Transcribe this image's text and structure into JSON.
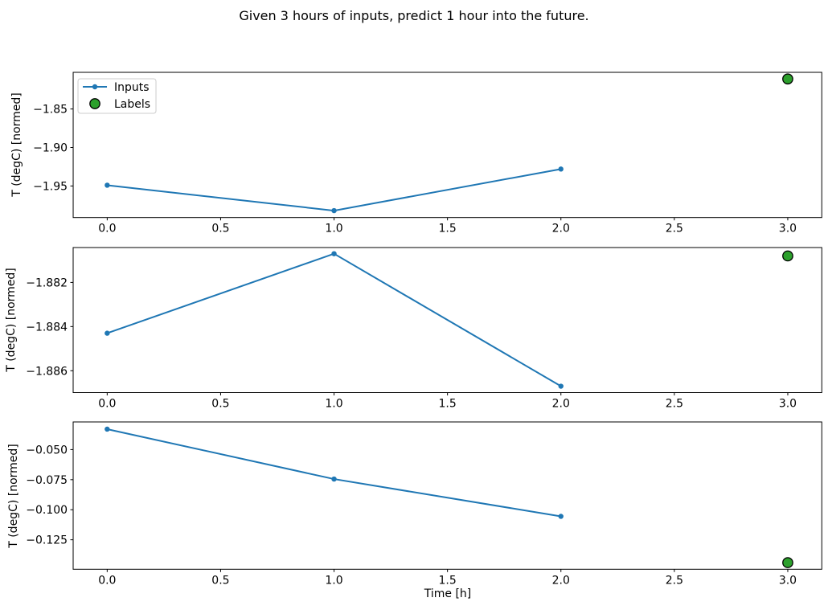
{
  "title": "Given 3 hours of inputs, predict 1 hour into the future.",
  "xlabel": "Time [h]",
  "colors": {
    "inputs_line": "#1f77b4",
    "labels_fill": "#2ca02c",
    "labels_edge": "#000000",
    "axis": "#000000",
    "legend_border": "#cccccc",
    "background": "#ffffff"
  },
  "legend": {
    "items": [
      {
        "label": "Inputs",
        "sample": "line-with-dot-marker"
      },
      {
        "label": "Labels",
        "sample": "filled-circle"
      }
    ]
  },
  "chart_data": [
    {
      "type": "line",
      "ylabel": "T (degC) [normed]",
      "xlim": [
        -0.15,
        3.15
      ],
      "ylim": [
        -1.991,
        -1.8024
      ],
      "xticks": {
        "values": [
          0,
          0.5,
          1,
          1.5,
          2,
          2.5,
          3
        ],
        "labels": [
          "0.0",
          "0.5",
          "1.0",
          "1.5",
          "2.0",
          "2.5",
          "3.0"
        ]
      },
      "yticks": {
        "values": [
          -1.85,
          -1.9,
          -1.95
        ],
        "labels": [
          "−1.85",
          "−1.90",
          "−1.95"
        ]
      },
      "series": [
        {
          "name": "Inputs",
          "x": [
            0,
            1,
            2
          ],
          "y": [
            -1.949,
            -1.982,
            -1.928
          ]
        },
        {
          "name": "Labels",
          "x": [
            3
          ],
          "y": [
            -1.811
          ]
        }
      ],
      "show_legend": true,
      "show_xlabel": false
    },
    {
      "type": "line",
      "ylabel": "T (degC) [normed]",
      "xlim": [
        -0.15,
        3.15
      ],
      "ylim": [
        -1.88699,
        -1.88042
      ],
      "xticks": {
        "values": [
          0,
          0.5,
          1,
          1.5,
          2,
          2.5,
          3
        ],
        "labels": [
          "0.0",
          "0.5",
          "1.0",
          "1.5",
          "2.0",
          "2.5",
          "3.0"
        ]
      },
      "yticks": {
        "values": [
          -1.882,
          -1.884,
          -1.886
        ],
        "labels": [
          "−1.882",
          "−1.884",
          "−1.886"
        ]
      },
      "series": [
        {
          "name": "Inputs",
          "x": [
            0,
            1,
            2
          ],
          "y": [
            -1.8843,
            -1.8807,
            -1.8867
          ]
        },
        {
          "name": "Labels",
          "x": [
            3
          ],
          "y": [
            -1.8808
          ]
        }
      ],
      "show_legend": false,
      "show_xlabel": false
    },
    {
      "type": "line",
      "ylabel": "T (degC) [normed]",
      "xlim": [
        -0.15,
        3.15
      ],
      "ylim": [
        -0.1495,
        -0.027
      ],
      "xticks": {
        "values": [
          0,
          0.5,
          1,
          1.5,
          2,
          2.5,
          3
        ],
        "labels": [
          "0.0",
          "0.5",
          "1.0",
          "1.5",
          "2.0",
          "2.5",
          "3.0"
        ]
      },
      "yticks": {
        "values": [
          -0.05,
          -0.075,
          -0.1,
          -0.125
        ],
        "labels": [
          "−0.050",
          "−0.075",
          "−0.100",
          "−0.125"
        ]
      },
      "series": [
        {
          "name": "Inputs",
          "x": [
            0,
            1,
            2
          ],
          "y": [
            -0.033,
            -0.0745,
            -0.1055
          ]
        },
        {
          "name": "Labels",
          "x": [
            3
          ],
          "y": [
            -0.144
          ]
        }
      ],
      "show_legend": false,
      "show_xlabel": true
    }
  ]
}
